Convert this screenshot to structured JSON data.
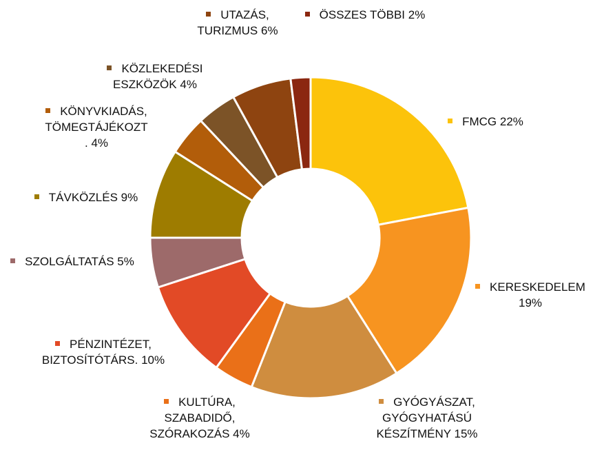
{
  "chart_data": {
    "type": "donut",
    "categories": [
      "FMCG",
      "KERESKEDELEM",
      "GYÓGYÁSZAT, GYÓGYHATÁSÚ KÉSZÍTMÉNY",
      "KULTÚRA, SZABADIDŐ, SZÓRAKOZÁS",
      "PÉNZINTÉZET, BIZTOSÍTÓTÁRS.",
      "SZOLGÁLTATÁS",
      "TÁVKÖZLÉS",
      "KÖNYVKIADÁS, TÖMEGTÁJÉKOZT.",
      "KÖZLEKEDÉSI ESZKÖZÖK",
      "UTAZÁS, TURIZMUS",
      "ÖSSZES TÖBBI"
    ],
    "values": [
      22,
      19,
      15,
      4,
      10,
      5,
      9,
      4,
      4,
      6,
      2
    ],
    "value_labels": [
      "22%",
      "19%",
      "15%",
      "4%",
      "10%",
      "5%",
      "9%",
      "4%",
      "4%",
      "6%",
      "2%"
    ],
    "colors": [
      "#fcc30b",
      "#f79420",
      "#cf8d3f",
      "#ea7018",
      "#e24a26",
      "#9d6a6a",
      "#9e7c00",
      "#b25d0a",
      "#7c5327",
      "#8e4410",
      "#8b2710"
    ]
  }
}
